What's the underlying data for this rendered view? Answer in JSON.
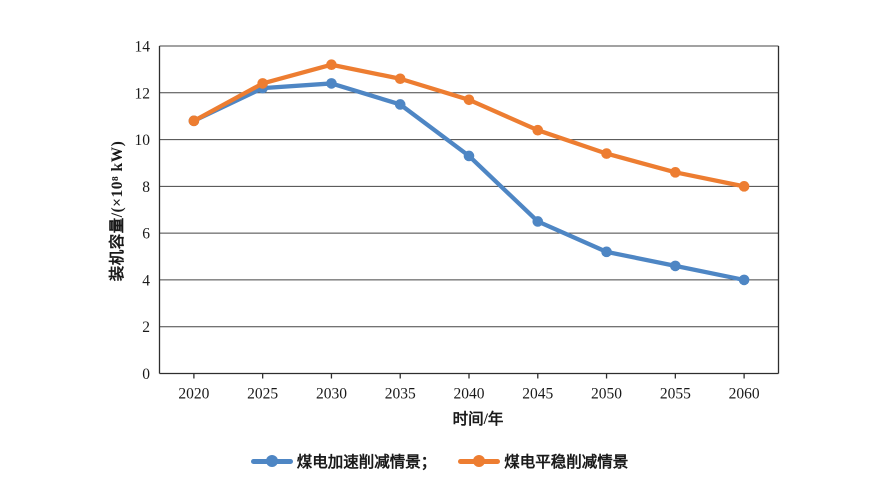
{
  "chart_data": {
    "type": "line",
    "title": "",
    "xlabel": "时间/年",
    "ylabel": "装机容量/(×10⁸ kW)",
    "x": [
      "2020",
      "2025",
      "2030",
      "2035",
      "2040",
      "2045",
      "2050",
      "2055",
      "2060"
    ],
    "ylim": [
      0,
      14
    ],
    "ytick_step": 2,
    "yticks": [
      0,
      2,
      4,
      6,
      8,
      10,
      12,
      14
    ],
    "grid": true,
    "legend_position": "bottom",
    "series": [
      {
        "name": "煤电加速削减情景",
        "color": "#4E86C4",
        "values": [
          10.8,
          12.2,
          12.4,
          11.5,
          9.3,
          6.5,
          5.2,
          4.6,
          4.0
        ]
      },
      {
        "name": "煤电平稳削减情景",
        "color": "#ED7D31",
        "values": [
          10.8,
          12.4,
          13.2,
          12.6,
          11.7,
          10.4,
          9.4,
          8.6,
          8.0
        ]
      }
    ]
  },
  "legend": {
    "items": [
      {
        "label": "煤电加速削减情景；",
        "color": "#4E86C4"
      },
      {
        "label": "煤电平稳削减情景",
        "color": "#ED7D31"
      }
    ]
  },
  "colors": {
    "axis": "#2e2e2e",
    "grid": "#454545",
    "text": "#1a1a1a",
    "background": "#ffffff"
  }
}
